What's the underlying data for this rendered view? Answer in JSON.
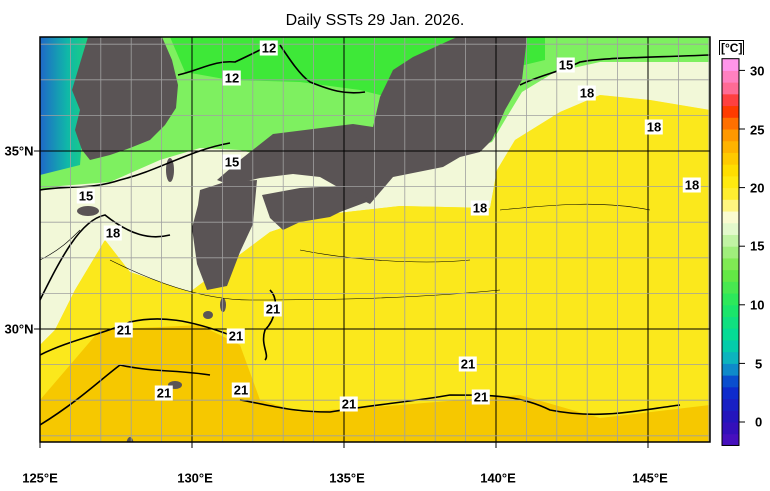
{
  "title": "Daily SSTs 29 Jan. 2026.",
  "lon_labels": [
    "125°E",
    "130°E",
    "135°E",
    "140°E",
    "145°E"
  ],
  "lat_labels": [
    "35°N",
    "30°N"
  ],
  "colorbar": {
    "unit": "[°C]",
    "ticks": [
      "30",
      "25",
      "20",
      "15",
      "10",
      "5",
      "0"
    ],
    "tick_values": [
      30,
      25,
      20,
      15,
      10,
      5,
      0
    ],
    "range": [
      -2,
      31
    ]
  },
  "contour_labels": [
    "12",
    "12",
    "15",
    "15",
    "15",
    "18",
    "18",
    "18",
    "18",
    "18",
    "21",
    "21",
    "21",
    "21",
    "21",
    "21",
    "21",
    "21"
  ],
  "colors": {
    "land": "#5a5455",
    "grid_fine": "#a0a0a0",
    "grid_major": "#000000",
    "contour": "#000000"
  }
}
